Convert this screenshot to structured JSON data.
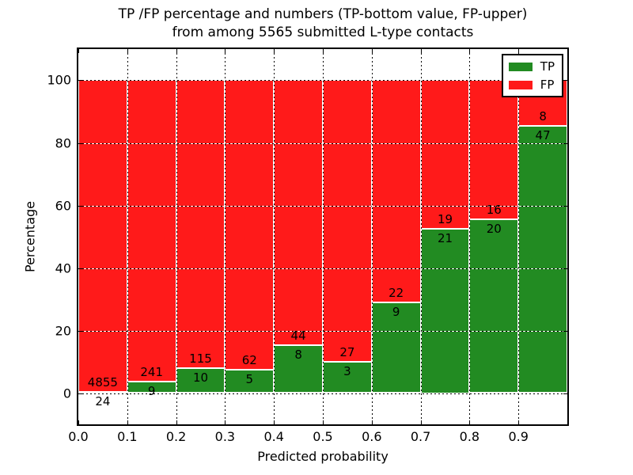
{
  "title": {
    "line1": "TP /FP percentage and numbers (TP-bottom value, FP-upper)",
    "line2": "from among 5565 submitted L-type contacts"
  },
  "chart_data": {
    "type": "bar",
    "stacked": true,
    "normalized_to_percent": true,
    "title": "TP /FP percentage and numbers (TP-bottom value, FP-upper) from among 5565 submitted L-type contacts",
    "xlabel": "Predicted probability",
    "ylabel": "Percentage",
    "categories": [
      "0.0-0.1",
      "0.1-0.2",
      "0.2-0.3",
      "0.3-0.4",
      "0.4-0.5",
      "0.5-0.6",
      "0.6-0.7",
      "0.7-0.8",
      "0.8-0.9",
      "0.9-1.0"
    ],
    "series": [
      {
        "name": "TP",
        "color": "#228b22",
        "counts": [
          24,
          9,
          10,
          5,
          8,
          3,
          9,
          21,
          20,
          47
        ]
      },
      {
        "name": "FP",
        "color": "#ff1a1a",
        "counts": [
          4855,
          241,
          115,
          62,
          44,
          27,
          22,
          19,
          16,
          8
        ]
      }
    ],
    "total_contacts": 5565,
    "bar_label_rule": "FP count printed above the TP/FP boundary, TP count printed below it",
    "xticks": [
      "0.0",
      "0.1",
      "0.2",
      "0.3",
      "0.4",
      "0.5",
      "0.6",
      "0.7",
      "0.8",
      "0.9"
    ],
    "yticks": [
      0,
      20,
      40,
      60,
      80,
      100
    ],
    "ylim": [
      -10,
      110
    ],
    "xlim": [
      0.0,
      1.0
    ],
    "grid": "dotted",
    "legend": {
      "position": "upper right",
      "entries": [
        "TP",
        "FP"
      ]
    }
  }
}
